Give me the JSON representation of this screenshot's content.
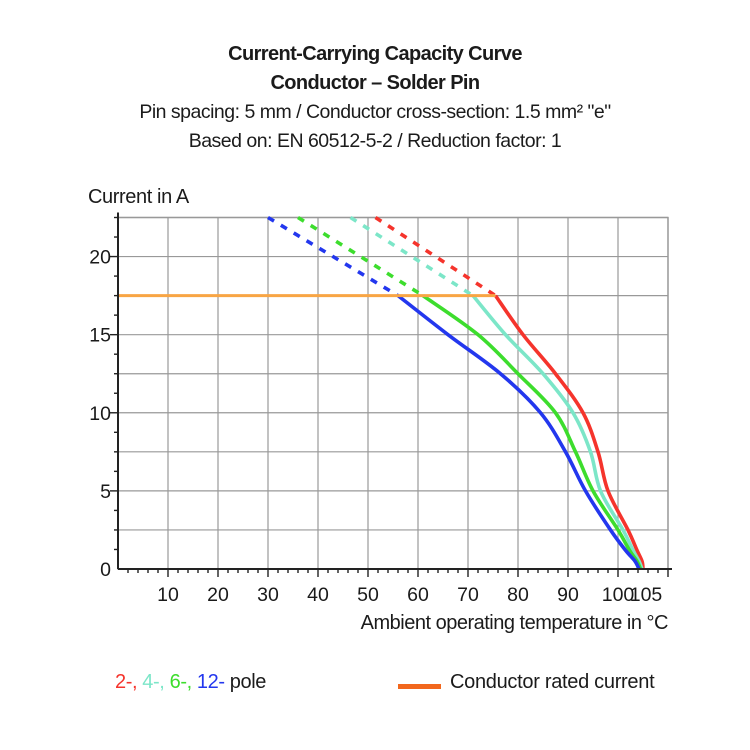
{
  "header": {
    "line1": "Current-Carrying Capacity Curve",
    "line2": "Conductor – Solder Pin",
    "line3": "Pin spacing: 5 mm / Conductor cross-section: 1.5 mm² \"e\"",
    "line4": "Based on: EN 60512-5-2 / Reduction factor: 1"
  },
  "axes": {
    "y_label": "Current in A",
    "x_label": "Ambient operating temperature in °C"
  },
  "legend": {
    "poles": [
      {
        "text": "2-,",
        "color": "#f5342c"
      },
      {
        "text": "4-,",
        "color": "#7ce6c8"
      },
      {
        "text": "6-,",
        "color": "#3ddd2d"
      },
      {
        "text": "12-",
        "color": "#2337ee"
      },
      {
        "text": "pole",
        "color": "#1b1b1b"
      }
    ],
    "rated": {
      "label": "Conductor rated current",
      "swatch_color": "#f2671d"
    }
  },
  "chart_data": {
    "type": "line",
    "title": "Current-Carrying Capacity Curve — Conductor – Solder Pin",
    "xlabel": "Ambient operating temperature in °C",
    "ylabel": "Current in A",
    "xlim": [
      0,
      110
    ],
    "ylim": [
      0,
      22.5
    ],
    "grid": true,
    "x_grid_step": 10,
    "y_grid_step": 2.5,
    "x_major_ticks": [
      10,
      20,
      30,
      40,
      50,
      60,
      70,
      80,
      90,
      100,
      105
    ],
    "x_minor_step": 2,
    "y_major_ticks": [
      0,
      5,
      10,
      15,
      20
    ],
    "y_minor_step": 1.25,
    "grid_color": "#999999",
    "rated_current": {
      "label": "Conductor rated current",
      "value_a": 17.5,
      "x_start": 0,
      "x_end": 75.5,
      "color": "#f8a544"
    },
    "dashed_above_a": 17.5,
    "series": [
      {
        "name": "2-pole",
        "color": "#f5342c",
        "points": [
          [
            51.5,
            22.5
          ],
          [
            75.5,
            17.5
          ],
          [
            81,
            15
          ],
          [
            87.5,
            12.5
          ],
          [
            93,
            10
          ],
          [
            96,
            7.5
          ],
          [
            98,
            5
          ],
          [
            102,
            2.5
          ],
          [
            103.8,
            1.2
          ],
          [
            104.8,
            0.5
          ],
          [
            105,
            0
          ]
        ]
      },
      {
        "name": "4-pole",
        "color": "#7ce6c8",
        "points": [
          [
            46.5,
            22.5
          ],
          [
            71,
            17.5
          ],
          [
            77.5,
            15
          ],
          [
            85,
            12.5
          ],
          [
            91,
            10
          ],
          [
            94.5,
            7.5
          ],
          [
            96.5,
            5
          ],
          [
            101,
            2.5
          ],
          [
            103,
            1.2
          ],
          [
            104.2,
            0.5
          ],
          [
            104.8,
            0
          ]
        ]
      },
      {
        "name": "6-pole",
        "color": "#3ddd2d",
        "points": [
          [
            36,
            22.5
          ],
          [
            61,
            17.5
          ],
          [
            72,
            15
          ],
          [
            80,
            12.5
          ],
          [
            87.5,
            10
          ],
          [
            91.5,
            7.5
          ],
          [
            95,
            5
          ],
          [
            100,
            2.5
          ],
          [
            102.3,
            1.2
          ],
          [
            103.8,
            0.5
          ],
          [
            104.5,
            0
          ]
        ]
      },
      {
        "name": "12-pole",
        "color": "#2337ee",
        "points": [
          [
            30,
            22.5
          ],
          [
            56,
            17.5
          ],
          [
            66,
            15
          ],
          [
            76.5,
            12.5
          ],
          [
            84.5,
            10
          ],
          [
            89.5,
            7.5
          ],
          [
            93.5,
            5
          ],
          [
            98.5,
            2.5
          ],
          [
            101.5,
            1.2
          ],
          [
            103.4,
            0.5
          ],
          [
            104.2,
            0
          ]
        ]
      }
    ]
  }
}
